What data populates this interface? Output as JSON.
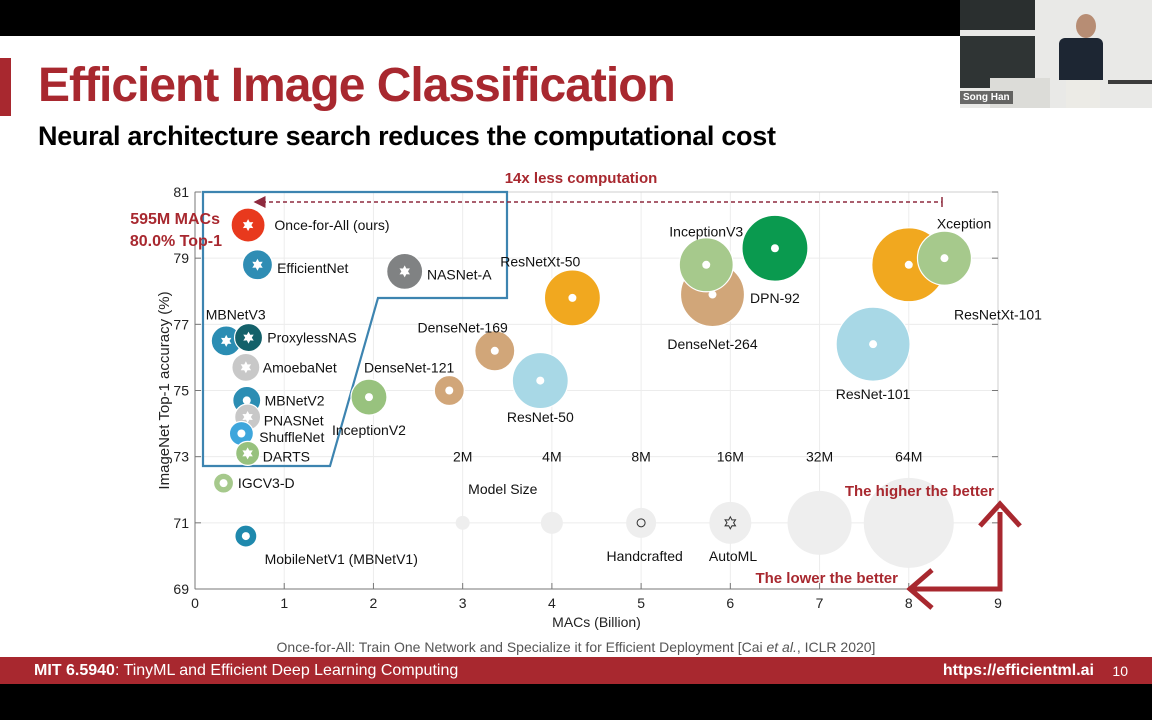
{
  "slide": {
    "title": "Efficient Image Classification",
    "subtitle": "Neural architecture search reduces the computational cost",
    "citation_prefix": "Once-for-All: Train One Network and Specialize it for Efficient Deployment [Cai ",
    "citation_etal": "et al.",
    "citation_suffix": ", ICLR 2020]",
    "colors": {
      "accent": "#a8282f",
      "box": "#3d84b0"
    }
  },
  "webcam": {
    "speaker_name": "Song Han"
  },
  "footer": {
    "course_code": "MIT 6.5940",
    "course_title": ": TinyML and Efficient Deep Learning Computing",
    "url": "https://efficientml.ai",
    "page_number": "10"
  },
  "chart_data": {
    "type": "scatter",
    "title": "",
    "xlabel": "MACs (Billion)",
    "ylabel": "ImageNet Top-1 accuracy (%)",
    "xlim": [
      0,
      9
    ],
    "ylim": [
      69,
      81
    ],
    "xticks": [
      "0",
      "1",
      "2",
      "3",
      "4",
      "5",
      "6",
      "7",
      "8",
      "9"
    ],
    "yticks": [
      "69",
      "71",
      "73",
      "75",
      "77",
      "79",
      "81"
    ],
    "grid": true,
    "annotations": {
      "ofa_macs": "595M MACs",
      "ofa_top1": "80.0% Top-1",
      "less_computation": "14x less computation",
      "higher_better": "The higher the better",
      "lower_better": "The lower the better"
    },
    "size_legend": {
      "title": "Model Size",
      "sizes": [
        {
          "label": "2M",
          "x": 3.0,
          "r": 7
        },
        {
          "label": "4M",
          "x": 4.0,
          "r": 11
        },
        {
          "label": "8M",
          "x": 5.0,
          "r": 15
        },
        {
          "label": "16M",
          "x": 6.0,
          "r": 21
        },
        {
          "label": "32M",
          "x": 7.0,
          "r": 32
        },
        {
          "label": "64M",
          "x": 8.0,
          "r": 45
        }
      ],
      "y": 71,
      "marker_labels": {
        "handcrafted": "Handcrafted",
        "automl": "AutoML"
      }
    },
    "series": [
      {
        "name": "Once-for-All (ours)",
        "macs": 0.595,
        "top1": 80.0,
        "size": "7.7M",
        "r": 17,
        "color": "#e8391d",
        "type": "automl",
        "lx": 0.89,
        "ly": 80.0,
        "anchor": "start"
      },
      {
        "name": "EfficientNet",
        "macs": 0.7,
        "top1": 78.8,
        "size": "7.8M",
        "r": 15,
        "color": "#2f8db4",
        "type": "automl",
        "lx": 0.92,
        "ly": 78.7,
        "anchor": "start"
      },
      {
        "name": "NASNet-A",
        "macs": 2.35,
        "top1": 78.6,
        "size": "88M",
        "r": 18,
        "color": "#808283",
        "type": "automl",
        "lx": 2.6,
        "ly": 78.5,
        "anchor": "start"
      },
      {
        "name": "ProxylessNAS",
        "macs": 0.6,
        "top1": 76.6,
        "size": "5.8M",
        "r": 14,
        "color": "#14616a",
        "type": "automl",
        "lx": 0.81,
        "ly": 76.6,
        "anchor": "start"
      },
      {
        "name": "MBNetV3",
        "macs": 0.35,
        "top1": 76.5,
        "size": "7.4M",
        "r": 15,
        "color": "#2b8db3",
        "type": "automl",
        "lx": 0.12,
        "ly": 77.3,
        "anchor": "start"
      },
      {
        "name": "AmoebaNet",
        "macs": 0.57,
        "top1": 75.7,
        "size": "5.1M",
        "r": 14,
        "color": "#c8c8c8",
        "type": "automl",
        "lx": 0.76,
        "ly": 75.7,
        "anchor": "start"
      },
      {
        "name": "MBNetV2",
        "macs": 0.58,
        "top1": 74.7,
        "size": "6.9M",
        "r": 14,
        "color": "#2b8db3",
        "type": "handcrafted",
        "lx": 0.78,
        "ly": 74.7,
        "anchor": "start"
      },
      {
        "name": "PNASNet",
        "macs": 0.59,
        "top1": 74.2,
        "size": "5.1M",
        "r": 13,
        "color": "#c8c8c8",
        "type": "automl",
        "lx": 0.77,
        "ly": 74.1,
        "anchor": "start"
      },
      {
        "name": "ShuffleNet",
        "macs": 0.52,
        "top1": 73.7,
        "size": "5.4M",
        "r": 12,
        "color": "#3ea6dc",
        "type": "handcrafted",
        "lx": 0.72,
        "ly": 73.6,
        "anchor": "start"
      },
      {
        "name": "DARTS",
        "macs": 0.59,
        "top1": 73.1,
        "size": "4.7M",
        "r": 12,
        "color": "#97c17e",
        "type": "automl",
        "lx": 0.76,
        "ly": 73.0,
        "anchor": "start"
      },
      {
        "name": "IGCV3-D",
        "macs": 0.32,
        "top1": 72.2,
        "size": "3.5M",
        "r": 10,
        "color": "#a6c98c",
        "type": "handcrafted",
        "lx": 0.48,
        "ly": 72.2,
        "anchor": "start"
      },
      {
        "name": "MobileNetV1 (MBNetV1)",
        "macs": 0.57,
        "top1": 70.6,
        "size": "4.2M",
        "r": 11,
        "color": "#1f89ad",
        "type": "handcrafted",
        "lx": 0.78,
        "ly": 69.9,
        "anchor": "start"
      },
      {
        "name": "InceptionV2",
        "macs": 1.95,
        "top1": 74.8,
        "size": "11M",
        "r": 18,
        "color": "#98c27e",
        "type": "handcrafted",
        "lx": 1.95,
        "ly": 73.8,
        "anchor": "middle"
      },
      {
        "name": "DenseNet-121",
        "macs": 2.85,
        "top1": 75.0,
        "size": "8M",
        "r": 15,
        "color": "#d1a679",
        "type": "handcrafted",
        "lx": 2.4,
        "ly": 75.7,
        "anchor": "middle"
      },
      {
        "name": "DenseNet-169",
        "macs": 3.36,
        "top1": 76.2,
        "size": "14M",
        "r": 20,
        "color": "#d1a679",
        "type": "handcrafted",
        "lx": 3.0,
        "ly": 76.9,
        "anchor": "middle"
      },
      {
        "name": "ResNet-50",
        "macs": 3.87,
        "top1": 75.3,
        "size": "26M",
        "r": 28,
        "color": "#a8d8e6",
        "type": "handcrafted",
        "lx": 3.87,
        "ly": 74.2,
        "anchor": "middle"
      },
      {
        "name": "ResNetXt-50",
        "macs": 4.23,
        "top1": 77.8,
        "size": "25M",
        "r": 28,
        "color": "#f1a81f",
        "type": "handcrafted",
        "lx": 3.87,
        "ly": 78.9,
        "anchor": "middle"
      },
      {
        "name": "DenseNet-264",
        "macs": 5.8,
        "top1": 77.9,
        "size": "34M",
        "r": 32,
        "color": "#d1a679",
        "type": "handcrafted",
        "lx": 5.8,
        "ly": 76.4,
        "anchor": "middle"
      },
      {
        "name": "InceptionV3",
        "macs": 5.73,
        "top1": 78.8,
        "size": "24M",
        "r": 27,
        "color": "#a6c98c",
        "type": "handcrafted",
        "lx": 5.73,
        "ly": 79.8,
        "anchor": "middle"
      },
      {
        "name": "DPN-92",
        "macs": 6.5,
        "top1": 79.3,
        "size": "38M",
        "r": 33,
        "color": "#0a9a4f",
        "type": "handcrafted",
        "lx": 6.5,
        "ly": 77.8,
        "anchor": "middle"
      },
      {
        "name": "ResNet-101",
        "macs": 7.6,
        "top1": 76.4,
        "size": "45M",
        "r": 37,
        "color": "#a8d8e6",
        "type": "handcrafted",
        "lx": 7.6,
        "ly": 74.9,
        "anchor": "middle"
      },
      {
        "name": "ResNetXt-101",
        "macs": 8.0,
        "top1": 78.8,
        "size": "44M",
        "r": 37,
        "color": "#f1a81f",
        "type": "handcrafted",
        "lx": 9.0,
        "ly": 77.3,
        "anchor": "middle"
      },
      {
        "name": "Xception",
        "macs": 8.4,
        "top1": 79.0,
        "size": "23M",
        "r": 27,
        "color": "#a6c98c",
        "type": "handcrafted",
        "lx": 8.62,
        "ly": 80.05,
        "anchor": "middle"
      }
    ]
  }
}
